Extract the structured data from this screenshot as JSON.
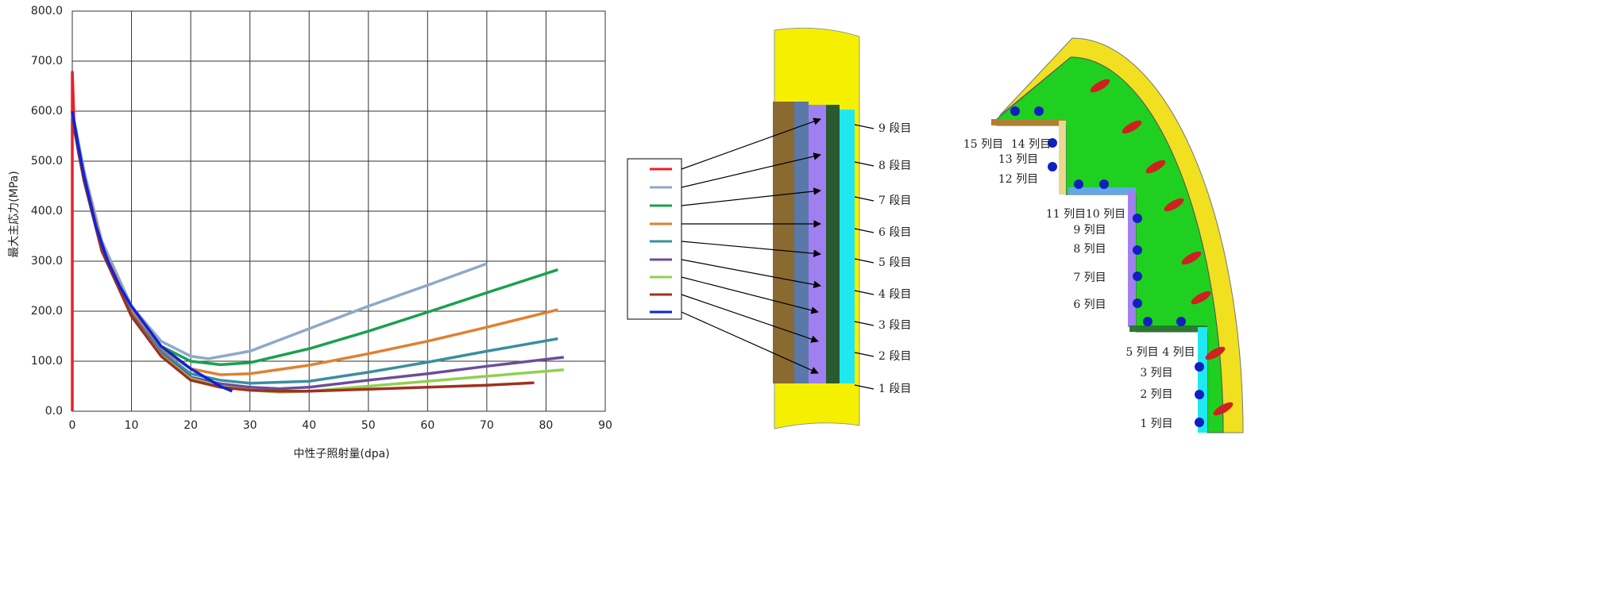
{
  "chart_data": {
    "type": "line",
    "xlabel": "中性子照射量(dpa)",
    "ylabel": "最大主応力(MPa)",
    "xlim": [
      0,
      90
    ],
    "xticks": [
      0,
      10,
      20,
      30,
      40,
      50,
      60,
      70,
      80,
      90
    ],
    "ylim": [
      0,
      800
    ],
    "yticks": [
      {
        "value": 0,
        "label": "0.0"
      },
      {
        "value": 100,
        "label": "100.0"
      },
      {
        "value": 200,
        "label": "200.0"
      },
      {
        "value": 300,
        "label": "300.0"
      },
      {
        "value": 400,
        "label": "400.0"
      },
      {
        "value": 500,
        "label": "500.0"
      },
      {
        "value": 600,
        "label": "600.0"
      },
      {
        "value": 700,
        "label": "700.0"
      },
      {
        "value": 800,
        "label": "800.0"
      }
    ],
    "grid": true,
    "series": [
      {
        "color": "#e8202a",
        "x": [
          0,
          0,
          0.3,
          1,
          2,
          3,
          4
        ],
        "values": [
          0,
          680,
          580,
          520,
          460,
          420,
          375
        ]
      },
      {
        "color": "#8fa8c8",
        "x": [
          0,
          2,
          5,
          10,
          15,
          20,
          23,
          30,
          40,
          50,
          60,
          70
        ],
        "values": [
          600,
          480,
          340,
          210,
          140,
          110,
          105,
          120,
          165,
          210,
          252,
          295
        ]
      },
      {
        "color": "#1aa050",
        "x": [
          0,
          2,
          5,
          10,
          15,
          20,
          25,
          30,
          40,
          50,
          60,
          70,
          82
        ],
        "values": [
          600,
          470,
          330,
          200,
          130,
          100,
          93,
          97,
          125,
          160,
          198,
          237,
          283
        ]
      },
      {
        "color": "#e08030",
        "x": [
          0,
          2,
          5,
          10,
          15,
          20,
          25,
          30,
          40,
          50,
          60,
          70,
          82
        ],
        "values": [
          590,
          470,
          330,
          200,
          125,
          85,
          73,
          75,
          92,
          115,
          140,
          168,
          203
        ]
      },
      {
        "color": "#3a8ea0",
        "x": [
          0,
          2,
          5,
          10,
          15,
          20,
          25,
          30,
          40,
          50,
          60,
          70,
          82
        ],
        "values": [
          590,
          465,
          325,
          195,
          120,
          75,
          62,
          56,
          60,
          78,
          98,
          120,
          145
        ]
      },
      {
        "color": "#6a4e9a",
        "x": [
          0,
          2,
          5,
          10,
          15,
          20,
          25,
          30,
          35,
          40,
          50,
          60,
          70,
          83
        ],
        "values": [
          585,
          462,
          322,
          192,
          115,
          68,
          55,
          48,
          45,
          48,
          62,
          75,
          90,
          108
        ]
      },
      {
        "color": "#90d050",
        "x": [
          0,
          2,
          5,
          10,
          15,
          20,
          25,
          30,
          35,
          40,
          50,
          60,
          70,
          83
        ],
        "values": [
          585,
          460,
          320,
          190,
          112,
          65,
          50,
          42,
          38,
          40,
          50,
          60,
          70,
          83
        ]
      },
      {
        "color": "#a03020",
        "x": [
          0,
          2,
          5,
          10,
          15,
          20,
          25,
          30,
          35,
          40,
          50,
          60,
          70,
          78
        ],
        "values": [
          585,
          460,
          320,
          190,
          110,
          62,
          48,
          42,
          40,
          40,
          44,
          48,
          52,
          57
        ]
      },
      {
        "color": "#1020e0",
        "x": [
          0,
          1,
          2,
          4,
          6,
          8,
          10,
          15,
          20,
          25,
          27
        ],
        "values": [
          600,
          530,
          470,
          370,
          300,
          250,
          210,
          130,
          85,
          50,
          40
        ]
      }
    ]
  },
  "stack_diagram": {
    "rows": [
      "9 段目",
      "8 段目",
      "7 段目",
      "6 段目",
      "5 段目",
      "4 段目",
      "3 段目",
      "2 段目",
      "1 段目"
    ]
  },
  "quarter_diagram": {
    "columns": [
      "15 列目",
      "14 列目",
      "13 列目",
      "12 列目",
      "11 列目",
      "10 列目",
      "9 列目",
      "8 列目",
      "7 列目",
      "6 列目",
      "5 列目",
      "4 列目",
      "3 列目",
      "2 列目",
      "1 列目"
    ]
  }
}
